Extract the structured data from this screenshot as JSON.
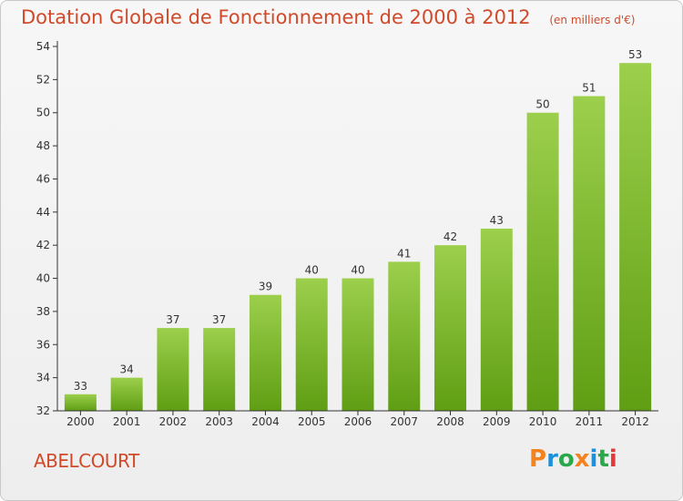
{
  "header": {
    "title": "Dotation Globale de Fonctionnement de 2000 à 2012",
    "unit": "(en milliers d'€)"
  },
  "footer": {
    "place": "ABELCOURT",
    "logo": "Proxiti"
  },
  "colors": {
    "title": "#d04a2a",
    "bar_light": "#9ccf4c",
    "bar_dark": "#5f9e14",
    "logo_letters": [
      "#f4831f",
      "#1e90d8",
      "#2aa84a",
      "#f4831f",
      "#1e90d8",
      "#2aa84a",
      "#e03a3a"
    ]
  },
  "chart_data": {
    "type": "bar",
    "categories": [
      "2000",
      "2001",
      "2002",
      "2003",
      "2004",
      "2005",
      "2006",
      "2007",
      "2008",
      "2009",
      "2010",
      "2011",
      "2012"
    ],
    "values": [
      33,
      34,
      37,
      37,
      39,
      40,
      40,
      41,
      42,
      43,
      50,
      51,
      53
    ],
    "ylim": [
      32,
      54
    ],
    "yticks": [
      32,
      34,
      36,
      38,
      40,
      42,
      44,
      46,
      48,
      50,
      52,
      54
    ],
    "title": "Dotation Globale de Fonctionnement de 2000 à 2012",
    "xlabel": "",
    "ylabel": "",
    "grid": false,
    "data_labels": true
  }
}
